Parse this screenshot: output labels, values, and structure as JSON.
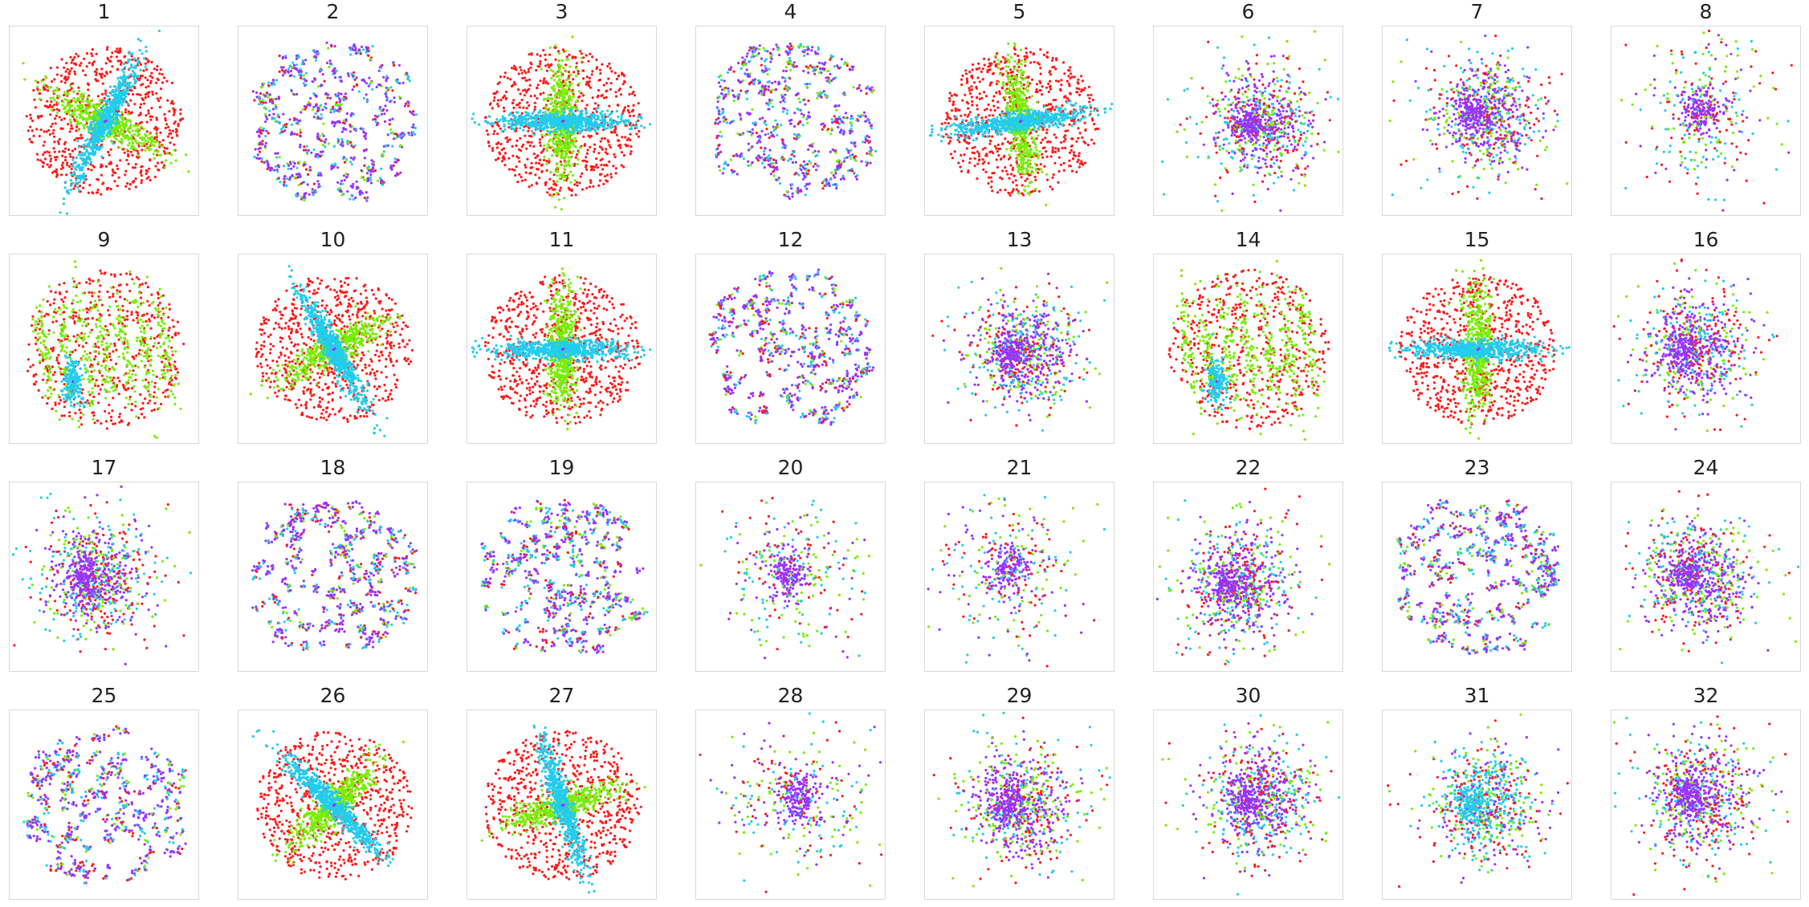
{
  "chart_data": {
    "type": "scatter",
    "title": "",
    "grid": false,
    "colors": {
      "red": "#ff1a1a",
      "green": "#77ee00",
      "cyan": "#22ccee",
      "purple": "#9933ff",
      "frame": "#d9d9d9"
    },
    "panels": [
      {
        "label": "1",
        "pattern": "cross",
        "angle": -62
      },
      {
        "label": "2",
        "pattern": "blob",
        "dominant": "purple"
      },
      {
        "label": "3",
        "pattern": "cross",
        "angle": 0
      },
      {
        "label": "4",
        "pattern": "blob",
        "dominant": "purple"
      },
      {
        "label": "5",
        "pattern": "cross",
        "angle": -8
      },
      {
        "label": "6",
        "pattern": "dense",
        "dominant": "purple"
      },
      {
        "label": "7",
        "pattern": "dense",
        "dominant": "purple"
      },
      {
        "label": "8",
        "pattern": "sparse",
        "dominant": "purple"
      },
      {
        "label": "9",
        "pattern": "stripes"
      },
      {
        "label": "10",
        "pattern": "cross",
        "angle": 60
      },
      {
        "label": "11",
        "pattern": "cross",
        "angle": 0
      },
      {
        "label": "12",
        "pattern": "blob",
        "dominant": "purple"
      },
      {
        "label": "13",
        "pattern": "dense",
        "dominant": "purple"
      },
      {
        "label": "14",
        "pattern": "stripes"
      },
      {
        "label": "15",
        "pattern": "cross",
        "angle": 0
      },
      {
        "label": "16",
        "pattern": "dense",
        "dominant": "purple"
      },
      {
        "label": "17",
        "pattern": "dense",
        "dominant": "purple"
      },
      {
        "label": "18",
        "pattern": "blob",
        "dominant": "purple"
      },
      {
        "label": "19",
        "pattern": "blob",
        "dominant": "purple"
      },
      {
        "label": "20",
        "pattern": "sparse",
        "dominant": "purple"
      },
      {
        "label": "21",
        "pattern": "sparse",
        "dominant": "purple"
      },
      {
        "label": "22",
        "pattern": "dense",
        "dominant": "purple"
      },
      {
        "label": "23",
        "pattern": "blob",
        "dominant": "purple"
      },
      {
        "label": "24",
        "pattern": "dense",
        "dominant": "purple"
      },
      {
        "label": "25",
        "pattern": "blob",
        "dominant": "purple"
      },
      {
        "label": "26",
        "pattern": "cross",
        "angle": 45
      },
      {
        "label": "27",
        "pattern": "cross",
        "angle": 72
      },
      {
        "label": "28",
        "pattern": "sparse",
        "dominant": "purple"
      },
      {
        "label": "29",
        "pattern": "dense",
        "dominant": "purple"
      },
      {
        "label": "30",
        "pattern": "dense",
        "dominant": "purple"
      },
      {
        "label": "31",
        "pattern": "dense",
        "dominant": "cyan"
      },
      {
        "label": "32",
        "pattern": "dense",
        "dominant": "purple"
      }
    ]
  }
}
